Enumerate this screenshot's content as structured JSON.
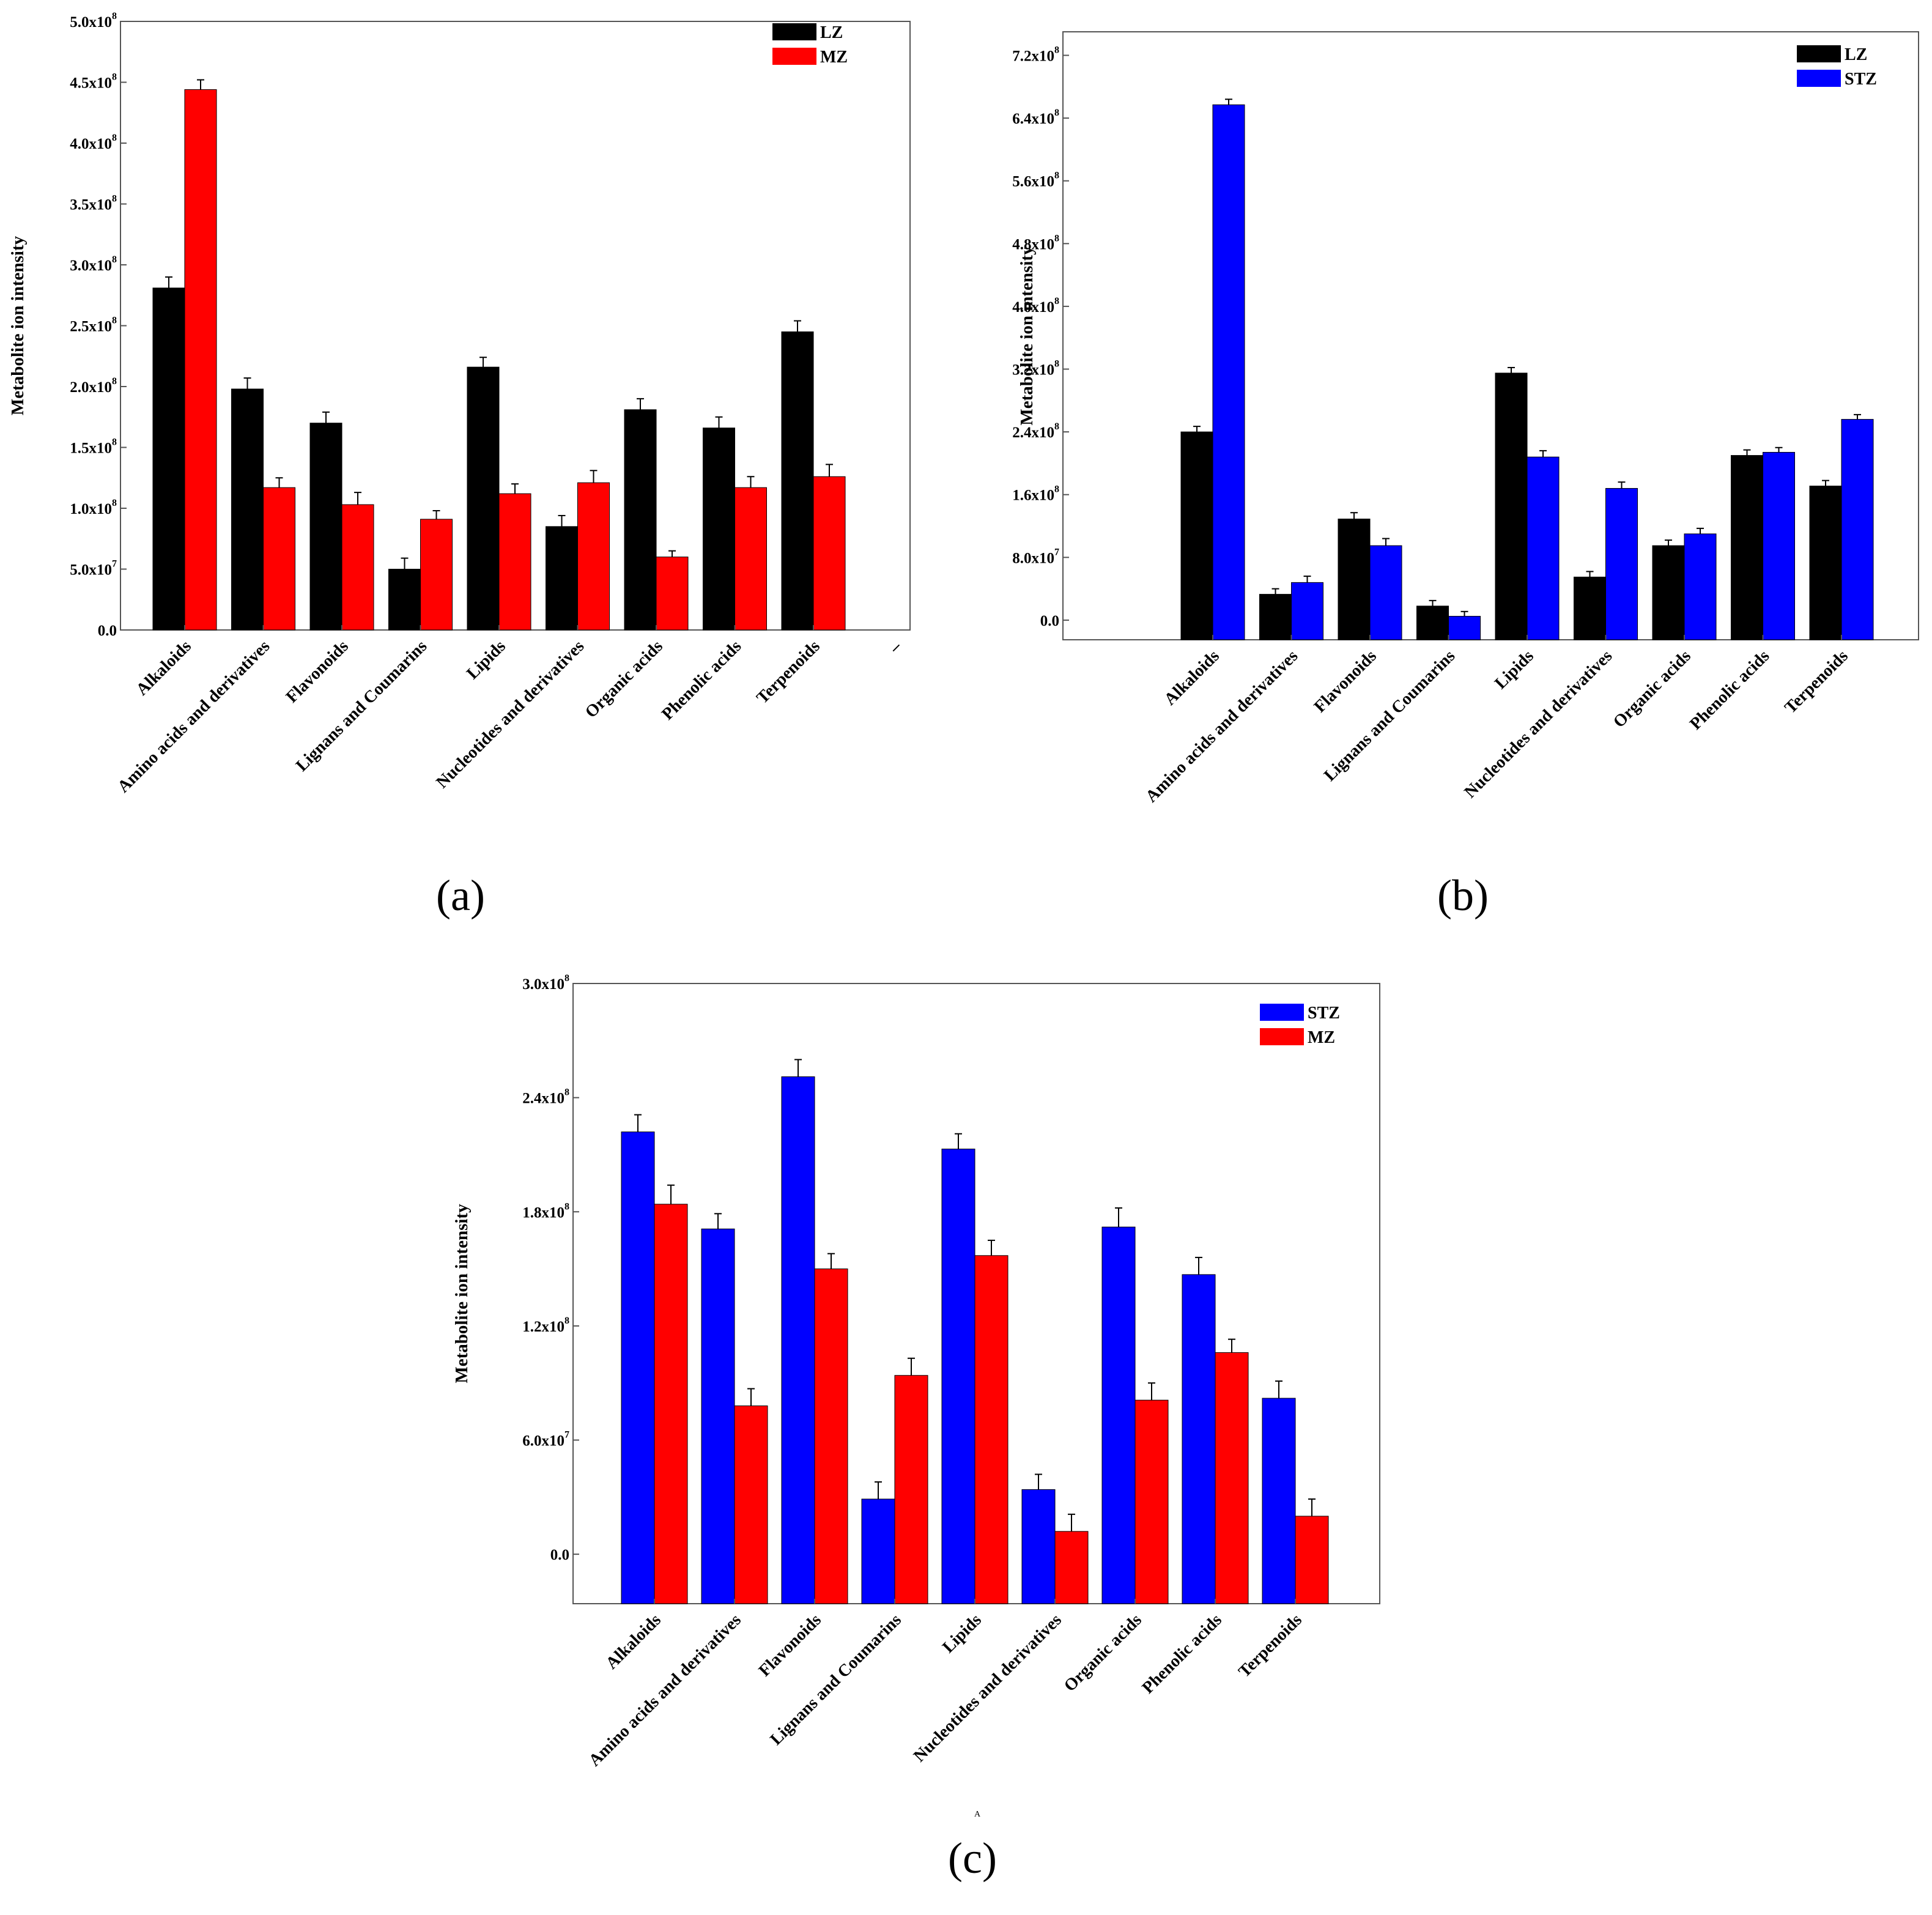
{
  "chart_data": [
    {
      "id": "a",
      "type": "bar",
      "panel_label": "(a)",
      "ylabel": "Metabolite ion intensity",
      "ylim": [
        0,
        500000000
      ],
      "yticks": [
        {
          "value": 0,
          "base": "0.0",
          "exp": ""
        },
        {
          "value": 50000000,
          "base": "5.0x10",
          "exp": "7"
        },
        {
          "value": 100000000,
          "base": "1.0x10",
          "exp": "8"
        },
        {
          "value": 150000000,
          "base": "1.5x10",
          "exp": "8"
        },
        {
          "value": 200000000,
          "base": "2.0x10",
          "exp": "8"
        },
        {
          "value": 250000000,
          "base": "2.5x10",
          "exp": "8"
        },
        {
          "value": 300000000,
          "base": "3.0x10",
          "exp": "8"
        },
        {
          "value": 350000000,
          "base": "3.5x10",
          "exp": "8"
        },
        {
          "value": 400000000,
          "base": "4.0x10",
          "exp": "8"
        },
        {
          "value": 450000000,
          "base": "4.5x10",
          "exp": "8"
        },
        {
          "value": 500000000,
          "base": "5.0x10",
          "exp": "8"
        }
      ],
      "categories": [
        "Alkaloids",
        "Amino acids and derivatives",
        "Flavonoids",
        "Lignans and Coumarins",
        "Lipids",
        "Nucleotides and derivatives",
        "Organic acids",
        "Phenolic acids",
        "Terpenoids"
      ],
      "extra_tick_label": "–",
      "series": [
        {
          "name": "LZ",
          "color": "#000000",
          "values": [
            281000000,
            198000000,
            170000000,
            50000000,
            216000000,
            85000000,
            181000000,
            166000000,
            245000000
          ],
          "errors": [
            9000000,
            9000000,
            9000000,
            9000000,
            8000000,
            9000000,
            9000000,
            9000000,
            9000000
          ]
        },
        {
          "name": "MZ",
          "color": "#ff0000",
          "values": [
            444000000,
            117000000,
            103000000,
            91000000,
            112000000,
            121000000,
            60000000,
            117000000,
            126000000
          ],
          "errors": [
            8000000,
            8000000,
            10000000,
            7000000,
            8000000,
            10000000,
            5000000,
            9000000,
            10000000
          ]
        }
      ]
    },
    {
      "id": "b",
      "type": "bar",
      "panel_label": "(b)",
      "ylabel": "Metabolite ion intensity",
      "ylim": [
        -25000000,
        750000000
      ],
      "yticks": [
        {
          "value": 0,
          "base": "0.0",
          "exp": ""
        },
        {
          "value": 80000000,
          "base": "8.0x10",
          "exp": "7"
        },
        {
          "value": 160000000,
          "base": "1.6x10",
          "exp": "8"
        },
        {
          "value": 240000000,
          "base": "2.4x10",
          "exp": "8"
        },
        {
          "value": 320000000,
          "base": "3.2x10",
          "exp": "8"
        },
        {
          "value": 400000000,
          "base": "4.0x10",
          "exp": "8"
        },
        {
          "value": 480000000,
          "base": "4.8x10",
          "exp": "8"
        },
        {
          "value": 560000000,
          "base": "5.6x10",
          "exp": "8"
        },
        {
          "value": 640000000,
          "base": "6.4x10",
          "exp": "8"
        },
        {
          "value": 720000000,
          "base": "7.2x10",
          "exp": "8"
        }
      ],
      "categories": [
        "Alkaloids",
        "Amino acids and derivatives",
        "Flavonoids",
        "Lignans and Coumarins",
        "Lipids",
        "Nucleotides and derivatives",
        "Organic acids",
        "Phenolic acids",
        "Terpenoids"
      ],
      "series": [
        {
          "name": "LZ",
          "color": "#000000",
          "values": [
            240000000,
            33000000,
            129000000,
            18000000,
            315000000,
            55000000,
            95000000,
            210000000,
            171000000
          ],
          "errors": [
            7000000,
            7000000,
            8000000,
            7000000,
            7000000,
            7000000,
            7000000,
            7000000,
            7000000
          ]
        },
        {
          "name": "STZ",
          "color": "#0000ff",
          "values": [
            657000000,
            48000000,
            95000000,
            5000000,
            208000000,
            168000000,
            110000000,
            214000000,
            256000000
          ],
          "errors": [
            7000000,
            8000000,
            9000000,
            6000000,
            8000000,
            8000000,
            7000000,
            6000000,
            6000000
          ]
        }
      ]
    },
    {
      "id": "c",
      "type": "bar",
      "panel_label": "(c)",
      "ylabel": "Metabolite ion intensity",
      "ylim": [
        -26000000,
        300000000
      ],
      "yticks": [
        {
          "value": 0,
          "base": "0.0",
          "exp": ""
        },
        {
          "value": 60000000,
          "base": "6.0x10",
          "exp": "7"
        },
        {
          "value": 120000000,
          "base": "1.2x10",
          "exp": "8"
        },
        {
          "value": 180000000,
          "base": "1.8x10",
          "exp": "8"
        },
        {
          "value": 240000000,
          "base": "2.4x10",
          "exp": "8"
        },
        {
          "value": 300000000,
          "base": "3.0x10",
          "exp": "8"
        }
      ],
      "categories": [
        "Alkaloids",
        "Amino acids and derivatives",
        "Flavonoids",
        "Lignans and Coumarins",
        "Lipids",
        "Nucleotides and derivatives",
        "Organic acids",
        "Phenolic acids",
        "Terpenoids"
      ],
      "stray_mark": "A",
      "series": [
        {
          "name": "STZ",
          "color": "#0000ff",
          "values": [
            222000000,
            171000000,
            251000000,
            29000000,
            213000000,
            34000000,
            172000000,
            147000000,
            82000000
          ],
          "errors": [
            9000000,
            8000000,
            9000000,
            9000000,
            8000000,
            8000000,
            10000000,
            9000000,
            9000000
          ]
        },
        {
          "name": "MZ",
          "color": "#ff0000",
          "values": [
            184000000,
            78000000,
            150000000,
            94000000,
            157000000,
            12000000,
            81000000,
            106000000,
            20000000
          ],
          "errors": [
            10000000,
            9000000,
            8000000,
            9000000,
            8000000,
            9000000,
            9000000,
            7000000,
            9000000
          ]
        }
      ]
    }
  ]
}
